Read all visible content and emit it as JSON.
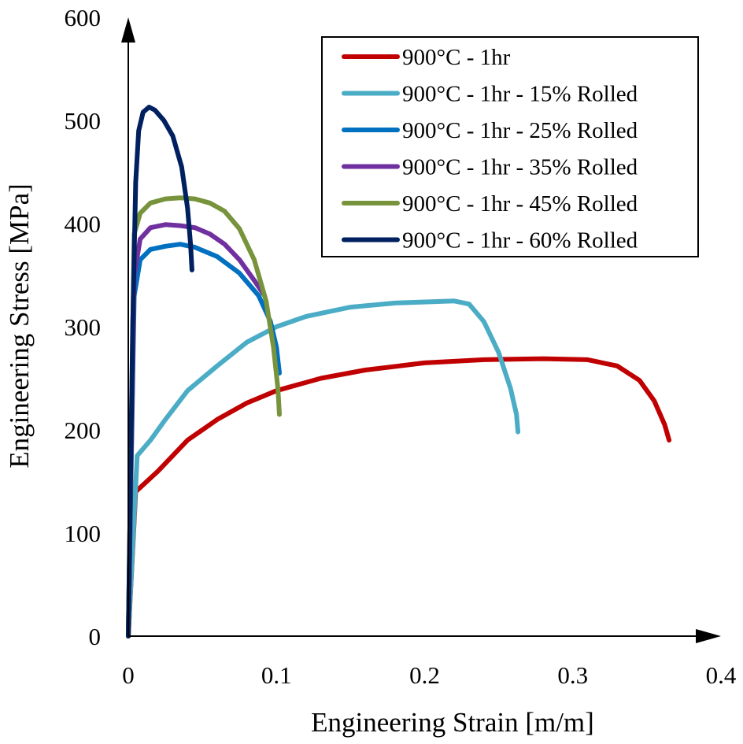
{
  "chart_data": {
    "type": "line",
    "title": "",
    "xlabel": "Engineering Strain [m/m]",
    "ylabel": "Engineering Stress [MPa]",
    "xlim": [
      0,
      0.4
    ],
    "ylim": [
      0,
      600
    ],
    "xticks": [
      {
        "value": 0,
        "label": "0"
      },
      {
        "value": 0.1,
        "label": "0.1"
      },
      {
        "value": 0.2,
        "label": "0.2"
      },
      {
        "value": 0.3,
        "label": "0.3"
      },
      {
        "value": 0.4,
        "label": "0.4"
      }
    ],
    "yticks": [
      {
        "value": 0,
        "label": "0"
      },
      {
        "value": 100,
        "label": "100"
      },
      {
        "value": 200,
        "label": "200"
      },
      {
        "value": 300,
        "label": "300"
      },
      {
        "value": 400,
        "label": "400"
      },
      {
        "value": 500,
        "label": "500"
      },
      {
        "value": 600,
        "label": "600"
      }
    ],
    "grid": false,
    "legend_position": "top-right",
    "series": [
      {
        "name": "900°C - 1hr",
        "color": "#C00000",
        "points": [
          [
            0,
            0
          ],
          [
            0.005,
            140
          ],
          [
            0.02,
            160
          ],
          [
            0.04,
            190
          ],
          [
            0.06,
            210
          ],
          [
            0.08,
            226
          ],
          [
            0.1,
            238
          ],
          [
            0.13,
            250
          ],
          [
            0.16,
            258
          ],
          [
            0.2,
            265
          ],
          [
            0.24,
            268
          ],
          [
            0.28,
            269
          ],
          [
            0.31,
            268
          ],
          [
            0.33,
            262
          ],
          [
            0.345,
            248
          ],
          [
            0.355,
            228
          ],
          [
            0.362,
            205
          ],
          [
            0.365,
            190
          ]
        ]
      },
      {
        "name": "900°C - 1hr - 15% Rolled",
        "color": "#4BACC6",
        "points": [
          [
            0,
            0
          ],
          [
            0.006,
            175
          ],
          [
            0.015,
            190
          ],
          [
            0.025,
            210
          ],
          [
            0.04,
            238
          ],
          [
            0.06,
            262
          ],
          [
            0.08,
            285
          ],
          [
            0.1,
            300
          ],
          [
            0.12,
            310
          ],
          [
            0.15,
            319
          ],
          [
            0.18,
            323
          ],
          [
            0.22,
            325
          ],
          [
            0.23,
            322
          ],
          [
            0.24,
            305
          ],
          [
            0.25,
            275
          ],
          [
            0.258,
            240
          ],
          [
            0.262,
            215
          ],
          [
            0.263,
            198
          ]
        ]
      },
      {
        "name": "900°C - 1hr - 25% Rolled",
        "color": "#0070C0",
        "points": [
          [
            0,
            0
          ],
          [
            0.004,
            330
          ],
          [
            0.008,
            365
          ],
          [
            0.015,
            375
          ],
          [
            0.025,
            378
          ],
          [
            0.035,
            380
          ],
          [
            0.045,
            377
          ],
          [
            0.06,
            368
          ],
          [
            0.075,
            352
          ],
          [
            0.088,
            330
          ],
          [
            0.096,
            305
          ],
          [
            0.1,
            280
          ],
          [
            0.102,
            255
          ]
        ]
      },
      {
        "name": "900°C - 1hr - 35% Rolled",
        "color": "#7030A0",
        "points": [
          [
            0,
            0
          ],
          [
            0.004,
            350
          ],
          [
            0.008,
            385
          ],
          [
            0.015,
            396
          ],
          [
            0.025,
            399
          ],
          [
            0.035,
            398
          ],
          [
            0.045,
            396
          ],
          [
            0.055,
            390
          ],
          [
            0.065,
            380
          ],
          [
            0.075,
            365
          ],
          [
            0.085,
            345
          ],
          [
            0.092,
            330
          ]
        ]
      },
      {
        "name": "900°C - 1hr - 45% Rolled",
        "color": "#77933C",
        "points": [
          [
            0,
            0
          ],
          [
            0.004,
            390
          ],
          [
            0.008,
            410
          ],
          [
            0.015,
            420
          ],
          [
            0.025,
            424
          ],
          [
            0.035,
            425
          ],
          [
            0.045,
            424
          ],
          [
            0.055,
            420
          ],
          [
            0.065,
            412
          ],
          [
            0.075,
            395
          ],
          [
            0.085,
            365
          ],
          [
            0.093,
            325
          ],
          [
            0.098,
            280
          ],
          [
            0.101,
            240
          ],
          [
            0.102,
            215
          ]
        ]
      },
      {
        "name": "900°C - 1hr - 60% Rolled",
        "color": "#002060",
        "points": [
          [
            0,
            0
          ],
          [
            0.003,
            300
          ],
          [
            0.005,
            440
          ],
          [
            0.007,
            490
          ],
          [
            0.01,
            508
          ],
          [
            0.014,
            513
          ],
          [
            0.018,
            510
          ],
          [
            0.024,
            500
          ],
          [
            0.03,
            485
          ],
          [
            0.036,
            455
          ],
          [
            0.04,
            415
          ],
          [
            0.042,
            380
          ],
          [
            0.043,
            355
          ]
        ]
      }
    ]
  }
}
